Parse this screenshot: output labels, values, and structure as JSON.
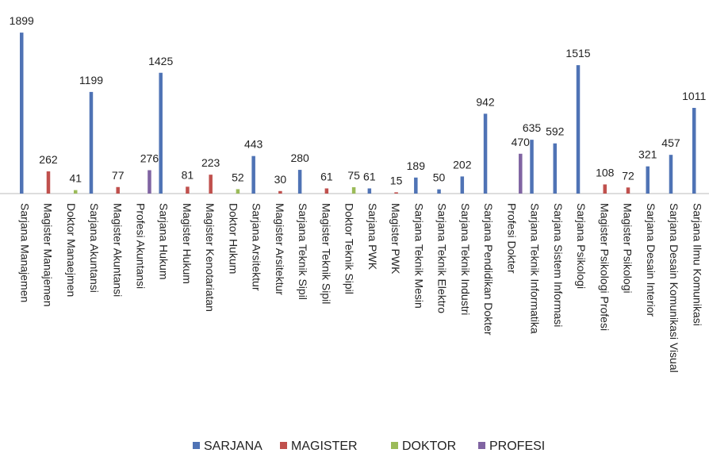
{
  "chart_data": {
    "type": "bar",
    "categories": [
      "Sarjana Manajemen",
      "Magister Manajemen",
      "Doktor Manaejmen",
      "Sarjana Akuntansi",
      "Magister Akuntansi",
      "Profesi Akuntansi",
      "Sarjana Hukum",
      "Magister Hukum",
      "Magister Kenotariatan",
      "Doktor Hukum",
      "Sarjana Arsitektur",
      "Magister Arsitektur",
      "Sarjana Teknik Sipil",
      "Magister Teknik Sipil",
      "Doktor Teknik Sipil",
      "Sarjana PWK",
      "Magister PWK",
      "Sarjana Teknik Mesin",
      "Sarjana Teknik Elektro",
      "Sarjana Teknik Industri",
      "Sarjana Pendidikan Dokter",
      "Profesi Dokter",
      "Sarjana Teknik Informatika",
      "Sarjana Sistem Informasi",
      "Sarjana Psikologi",
      "Magister Psikologi Profesi",
      "Magister Psikologi",
      "Sarjana Desain Interior",
      "Sarjana Desain Komunikasi Visual",
      "Sarjana Ilmu Komunikasi"
    ],
    "series": [
      {
        "name": "SARJANA",
        "color": "#4f73b5",
        "values": [
          1899,
          null,
          null,
          1199,
          null,
          null,
          1425,
          null,
          null,
          null,
          443,
          null,
          280,
          null,
          null,
          61,
          null,
          189,
          50,
          202,
          942,
          null,
          635,
          592,
          1515,
          null,
          null,
          321,
          457,
          1011
        ]
      },
      {
        "name": "MAGISTER",
        "color": "#c0504d",
        "values": [
          null,
          262,
          null,
          null,
          77,
          null,
          null,
          81,
          223,
          null,
          null,
          30,
          null,
          61,
          null,
          null,
          15,
          null,
          null,
          null,
          null,
          null,
          null,
          null,
          null,
          108,
          72,
          null,
          null,
          null
        ]
      },
      {
        "name": "DOKTOR",
        "color": "#9bbb59",
        "values": [
          null,
          null,
          41,
          null,
          null,
          null,
          null,
          null,
          null,
          52,
          null,
          null,
          null,
          null,
          75,
          null,
          null,
          null,
          null,
          null,
          null,
          null,
          null,
          null,
          null,
          null,
          null,
          null,
          null,
          null
        ]
      },
      {
        "name": "PROFESI",
        "color": "#8064a2",
        "values": [
          null,
          null,
          null,
          null,
          null,
          276,
          null,
          null,
          null,
          null,
          null,
          null,
          null,
          null,
          null,
          null,
          null,
          null,
          null,
          null,
          null,
          470,
          null,
          null,
          null,
          null,
          null,
          null,
          null,
          null
        ]
      }
    ],
    "ylim": [
      0,
      1900
    ],
    "legend": "bottom"
  }
}
